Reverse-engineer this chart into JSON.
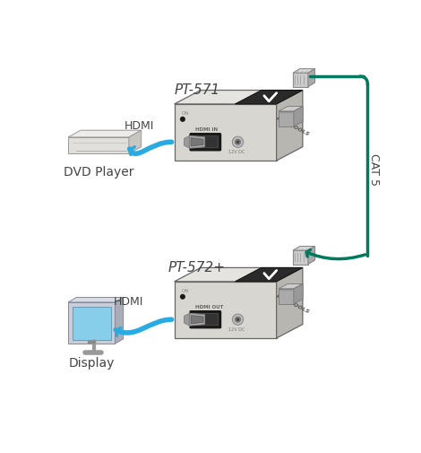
{
  "bg_color": "#ffffff",
  "device1_label": "PT-571",
  "device2_label": "PT-572+",
  "source_label": "DVD Player",
  "dest_label": "Display",
  "hdmi_label": "HDMI",
  "cat5_label": "CAT 5",
  "cable_color": "#29ABE2",
  "cat5_color": "#007A5E",
  "box_face": "#D8D6D0",
  "box_top": "#E6E4E0",
  "box_side": "#B8B6B0",
  "box_edge": "#666666",
  "dvd_face": "#E0DFDC",
  "dvd_top": "#EDECEA",
  "dvd_side": "#C8C6C2",
  "mon_bezel": "#AAAAAA",
  "mon_screen": "#87CEEB",
  "text_dark": "#444444",
  "text_mid": "#666666",
  "logo_dark": "#222222",
  "rj45_face": "#CCCCCC",
  "hdmi_plug": "#AAAAAA",
  "hdmi_inner": "#777777"
}
